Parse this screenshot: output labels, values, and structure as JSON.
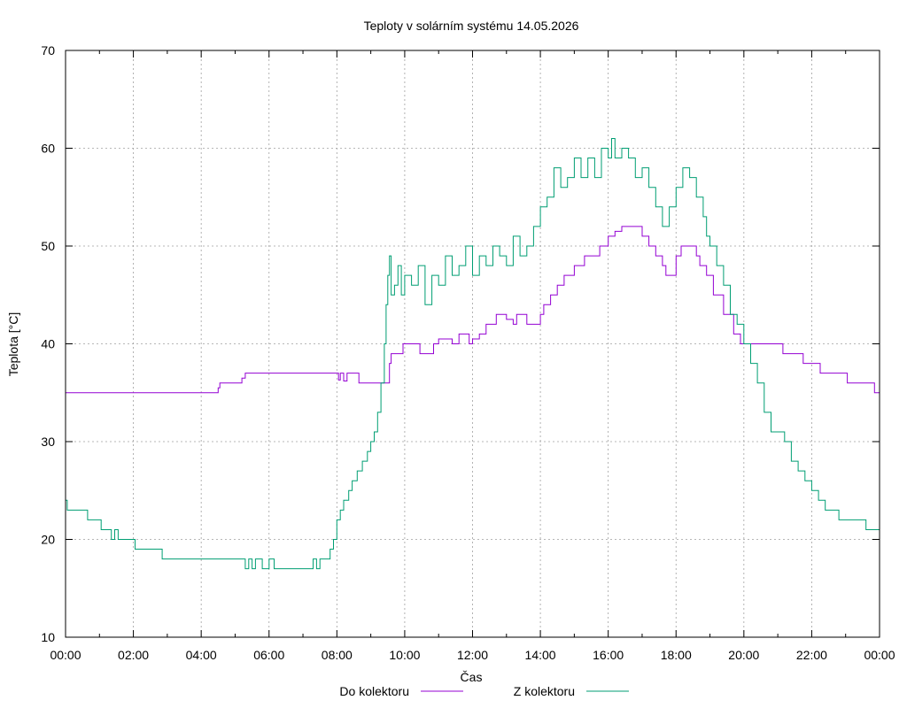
{
  "chart_data": {
    "type": "line",
    "title": "Teploty v solárním systému 14.05.2026",
    "xlabel": "Čas",
    "ylabel": "Teplota [°C]",
    "x_tick_labels": [
      "00:00",
      "02:00",
      "04:00",
      "06:00",
      "08:00",
      "10:00",
      "12:00",
      "14:00",
      "16:00",
      "18:00",
      "20:00",
      "22:00",
      "00:00"
    ],
    "y_ticks": [
      10,
      20,
      30,
      40,
      50,
      60,
      70
    ],
    "xlim_hours": [
      0,
      24
    ],
    "ylim": [
      10,
      70
    ],
    "grid": true,
    "legend_position": "bottom",
    "series": [
      {
        "name": "Do kolektoru",
        "color": "#9400d3",
        "points": [
          [
            0,
            35
          ],
          [
            4.5,
            35
          ],
          [
            4.5,
            35.5
          ],
          [
            4.55,
            36
          ],
          [
            5.15,
            36
          ],
          [
            5.2,
            36.5
          ],
          [
            5.3,
            37
          ],
          [
            8.0,
            37
          ],
          [
            8.05,
            36.3
          ],
          [
            8.1,
            37
          ],
          [
            8.2,
            36.2
          ],
          [
            8.3,
            37
          ],
          [
            8.6,
            37
          ],
          [
            8.65,
            36
          ],
          [
            9.5,
            36
          ],
          [
            9.55,
            38
          ],
          [
            9.6,
            39
          ],
          [
            9.9,
            39
          ],
          [
            9.95,
            40
          ],
          [
            10.4,
            40
          ],
          [
            10.45,
            39
          ],
          [
            10.8,
            39
          ],
          [
            10.85,
            40
          ],
          [
            11.0,
            40.5
          ],
          [
            11.4,
            40
          ],
          [
            11.6,
            41
          ],
          [
            11.9,
            40
          ],
          [
            12.0,
            40.5
          ],
          [
            12.2,
            41
          ],
          [
            12.4,
            42
          ],
          [
            12.6,
            42
          ],
          [
            12.7,
            43
          ],
          [
            13.0,
            42.5
          ],
          [
            13.2,
            42
          ],
          [
            13.3,
            43
          ],
          [
            13.6,
            42
          ],
          [
            14.0,
            43
          ],
          [
            14.1,
            44
          ],
          [
            14.3,
            45
          ],
          [
            14.5,
            46
          ],
          [
            14.7,
            47
          ],
          [
            15.0,
            48
          ],
          [
            15.3,
            49
          ],
          [
            15.6,
            49
          ],
          [
            15.75,
            50
          ],
          [
            16.0,
            51
          ],
          [
            16.2,
            51.5
          ],
          [
            16.4,
            52
          ],
          [
            16.9,
            52
          ],
          [
            17.0,
            51
          ],
          [
            17.2,
            50
          ],
          [
            17.4,
            49
          ],
          [
            17.6,
            48
          ],
          [
            17.7,
            47
          ],
          [
            17.95,
            47
          ],
          [
            18.0,
            49
          ],
          [
            18.15,
            50
          ],
          [
            18.5,
            50
          ],
          [
            18.6,
            49
          ],
          [
            18.7,
            48
          ],
          [
            18.9,
            47
          ],
          [
            19.1,
            45
          ],
          [
            19.4,
            43
          ],
          [
            19.7,
            41
          ],
          [
            19.9,
            40
          ],
          [
            20.0,
            40
          ],
          [
            21.1,
            40
          ],
          [
            21.15,
            39
          ],
          [
            21.7,
            39
          ],
          [
            21.75,
            38
          ],
          [
            22.2,
            38
          ],
          [
            22.25,
            37
          ],
          [
            23.0,
            37
          ],
          [
            23.05,
            36
          ],
          [
            23.8,
            36
          ],
          [
            23.85,
            35
          ],
          [
            24.0,
            35
          ]
        ]
      },
      {
        "name": "Z kolektoru",
        "color": "#009e73",
        "points": [
          [
            0,
            24
          ],
          [
            0.05,
            23
          ],
          [
            0.6,
            23
          ],
          [
            0.65,
            22
          ],
          [
            1.0,
            22
          ],
          [
            1.05,
            21
          ],
          [
            1.3,
            21
          ],
          [
            1.35,
            20
          ],
          [
            1.45,
            21
          ],
          [
            1.55,
            20
          ],
          [
            2.0,
            20
          ],
          [
            2.05,
            19
          ],
          [
            2.8,
            19
          ],
          [
            2.85,
            18
          ],
          [
            5.2,
            18
          ],
          [
            5.3,
            17
          ],
          [
            5.4,
            18
          ],
          [
            5.5,
            17
          ],
          [
            5.6,
            18
          ],
          [
            5.8,
            17
          ],
          [
            6.0,
            18
          ],
          [
            6.15,
            17
          ],
          [
            7.2,
            17
          ],
          [
            7.3,
            18
          ],
          [
            7.4,
            17
          ],
          [
            7.5,
            18
          ],
          [
            7.7,
            18
          ],
          [
            7.8,
            19
          ],
          [
            7.9,
            20
          ],
          [
            8.0,
            22
          ],
          [
            8.1,
            23
          ],
          [
            8.2,
            24
          ],
          [
            8.35,
            25
          ],
          [
            8.45,
            26
          ],
          [
            8.6,
            27
          ],
          [
            8.75,
            28
          ],
          [
            8.9,
            29
          ],
          [
            9.0,
            30
          ],
          [
            9.1,
            31
          ],
          [
            9.2,
            33
          ],
          [
            9.3,
            36
          ],
          [
            9.4,
            40
          ],
          [
            9.45,
            44
          ],
          [
            9.5,
            47
          ],
          [
            9.55,
            49
          ],
          [
            9.6,
            45
          ],
          [
            9.7,
            46
          ],
          [
            9.8,
            48
          ],
          [
            9.9,
            45
          ],
          [
            10.0,
            47
          ],
          [
            10.2,
            46
          ],
          [
            10.4,
            48
          ],
          [
            10.6,
            44
          ],
          [
            10.8,
            47
          ],
          [
            11.0,
            46
          ],
          [
            11.2,
            49
          ],
          [
            11.4,
            47
          ],
          [
            11.6,
            48
          ],
          [
            11.8,
            50
          ],
          [
            12.0,
            47
          ],
          [
            12.2,
            49
          ],
          [
            12.4,
            48
          ],
          [
            12.6,
            50
          ],
          [
            12.8,
            49
          ],
          [
            13.0,
            48
          ],
          [
            13.2,
            51
          ],
          [
            13.4,
            49
          ],
          [
            13.6,
            50
          ],
          [
            13.8,
            52
          ],
          [
            14.0,
            54
          ],
          [
            14.2,
            55
          ],
          [
            14.4,
            58
          ],
          [
            14.6,
            56
          ],
          [
            14.8,
            57
          ],
          [
            15.0,
            59
          ],
          [
            15.2,
            57
          ],
          [
            15.4,
            59
          ],
          [
            15.6,
            57
          ],
          [
            15.8,
            60
          ],
          [
            16.0,
            59
          ],
          [
            16.1,
            61
          ],
          [
            16.2,
            59
          ],
          [
            16.4,
            60
          ],
          [
            16.6,
            59
          ],
          [
            16.8,
            57
          ],
          [
            17.0,
            58
          ],
          [
            17.2,
            56
          ],
          [
            17.4,
            54
          ],
          [
            17.6,
            52
          ],
          [
            17.8,
            54
          ],
          [
            18.0,
            56
          ],
          [
            18.2,
            58
          ],
          [
            18.4,
            57
          ],
          [
            18.6,
            55
          ],
          [
            18.8,
            53
          ],
          [
            18.9,
            51
          ],
          [
            19.0,
            50
          ],
          [
            19.2,
            48
          ],
          [
            19.4,
            46
          ],
          [
            19.6,
            43
          ],
          [
            19.8,
            42
          ],
          [
            20.0,
            40
          ],
          [
            20.2,
            38
          ],
          [
            20.4,
            36
          ],
          [
            20.6,
            33
          ],
          [
            20.8,
            31
          ],
          [
            21.0,
            31
          ],
          [
            21.2,
            30
          ],
          [
            21.4,
            28
          ],
          [
            21.6,
            27
          ],
          [
            21.8,
            26
          ],
          [
            22.0,
            25
          ],
          [
            22.2,
            24
          ],
          [
            22.4,
            23
          ],
          [
            22.6,
            23
          ],
          [
            22.8,
            22
          ],
          [
            23.0,
            22
          ],
          [
            23.2,
            22
          ],
          [
            23.4,
            22
          ],
          [
            23.6,
            21
          ],
          [
            23.8,
            21
          ],
          [
            24.0,
            21
          ]
        ]
      }
    ]
  }
}
